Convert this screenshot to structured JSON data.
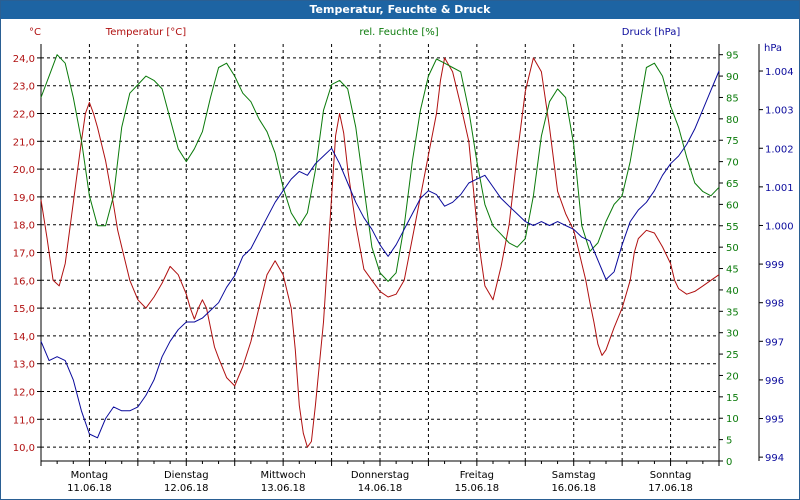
{
  "window": {
    "title": "Temperatur, Feuchte & Druck"
  },
  "colors": {
    "temperature": "#b01010",
    "humidity": "#0a7a0a",
    "pressure": "#0a0a9c",
    "grid": "#000000"
  },
  "chart_data": {
    "type": "line",
    "title": "Temperatur, Feuchte & Druck",
    "x_unit": "hours since 11.06.18 00:00",
    "x_range": [
      0,
      168
    ],
    "grid": true,
    "day_labels": [
      {
        "day": "Montag",
        "date": "11.06.18",
        "x": 0
      },
      {
        "day": "Dienstag",
        "date": "12.06.18",
        "x": 24
      },
      {
        "day": "Mittwoch",
        "date": "13.06.18",
        "x": 48
      },
      {
        "day": "Donnerstag",
        "date": "14.06.18",
        "x": 72
      },
      {
        "day": "Freitag",
        "date": "15.06.18",
        "x": 96
      },
      {
        "day": "Samstag",
        "date": "16.06.18",
        "x": 120
      },
      {
        "day": "Sonntag",
        "date": "17.06.18",
        "x": 144
      }
    ],
    "axes": {
      "temperature": {
        "label": "Temperatur [°C]",
        "unit": "°C",
        "range": [
          9.5,
          24.5
        ],
        "ticks": [
          "10,0",
          "11,0",
          "12,0",
          "13,0",
          "14,0",
          "15,0",
          "16,0",
          "17,0",
          "18,0",
          "19,0",
          "20,0",
          "21,0",
          "22,0",
          "23,0",
          "24,0"
        ]
      },
      "humidity": {
        "label": "rel. Feuchte [%]",
        "unit": "%",
        "range": [
          0,
          97.5
        ],
        "ticks": [
          "0",
          "5",
          "10",
          "15",
          "20",
          "25",
          "30",
          "35",
          "40",
          "45",
          "50",
          "55",
          "60",
          "65",
          "70",
          "75",
          "80",
          "85",
          "90",
          "95"
        ]
      },
      "pressure": {
        "label": "Druck [hPa]",
        "unit": "hPa",
        "range": [
          993.9,
          1004.7
        ],
        "ticks": [
          "994",
          "995",
          "996",
          "997",
          "998",
          "999",
          "1.000",
          "1.001",
          "1.002",
          "1.003",
          "1.004"
        ]
      }
    },
    "series": [
      {
        "name": "Temperatur",
        "axis": "temperature",
        "x": [
          0,
          1.5,
          3,
          4.5,
          6,
          8,
          10,
          11,
          12,
          13,
          14,
          16,
          18,
          19,
          20,
          22,
          24,
          26,
          28,
          30,
          32,
          34,
          36,
          37,
          38,
          39,
          40,
          41,
          42,
          43,
          44,
          46,
          48,
          50,
          52,
          54,
          56,
          58,
          60,
          62,
          63,
          64,
          65,
          66,
          67,
          68,
          70,
          72,
          73,
          74,
          75,
          76,
          78,
          80,
          82,
          84,
          86,
          88,
          90,
          92,
          94,
          96,
          98,
          99,
          100,
          102,
          104,
          106,
          107,
          108,
          109,
          110,
          112,
          114,
          116,
          118,
          120,
          122,
          124,
          126,
          128,
          130,
          132,
          133,
          134,
          135,
          136,
          137,
          138,
          139,
          140,
          142,
          144,
          146,
          147,
          148,
          150,
          152,
          154,
          156,
          157,
          158,
          160,
          162,
          164,
          166,
          168
        ],
        "values": [
          18.9,
          17.5,
          16.0,
          15.8,
          16.6,
          18.8,
          21.0,
          22.0,
          22.4,
          22.0,
          21.5,
          20.3,
          18.7,
          17.8,
          17.2,
          16.0,
          15.3,
          15.0,
          15.4,
          15.9,
          16.5,
          16.2,
          15.5,
          15.0,
          14.6,
          15.0,
          15.3,
          15.0,
          14.3,
          13.6,
          13.2,
          12.5,
          12.2,
          12.9,
          13.8,
          15.0,
          16.2,
          16.7,
          16.2,
          15.0,
          13.5,
          11.5,
          10.5,
          10.0,
          10.2,
          11.5,
          14.5,
          19.0,
          21.2,
          22.0,
          21.3,
          20.0,
          18.0,
          16.4,
          16.0,
          15.6,
          15.4,
          15.5,
          16.0,
          17.5,
          19.0,
          20.5,
          22.0,
          23.2,
          24.0,
          23.5,
          22.3,
          21.0,
          19.5,
          18.0,
          16.8,
          15.8,
          15.3,
          16.5,
          18.0,
          20.5,
          22.8,
          24.0,
          23.5,
          21.5,
          19.2,
          18.4,
          17.8,
          17.2,
          16.6,
          16.0,
          15.2,
          14.5,
          13.7,
          13.3,
          13.5,
          14.3,
          15.0,
          16.0,
          17.0,
          17.5,
          17.8,
          17.7,
          17.2,
          16.6,
          16.0,
          15.7,
          15.5,
          15.6,
          15.8,
          16.0,
          16.2
        ]
      },
      {
        "name": "rel. Feuchte",
        "axis": "humidity",
        "x": [
          0,
          2,
          4,
          6,
          8,
          10,
          12,
          14,
          16,
          18,
          20,
          22,
          24,
          26,
          28,
          30,
          32,
          34,
          36,
          38,
          40,
          42,
          44,
          46,
          48,
          50,
          52,
          54,
          56,
          58,
          60,
          62,
          64,
          66,
          68,
          70,
          72,
          74,
          76,
          78,
          80,
          82,
          84,
          86,
          88,
          90,
          92,
          94,
          96,
          98,
          100,
          102,
          104,
          106,
          108,
          110,
          112,
          114,
          116,
          118,
          120,
          122,
          124,
          126,
          128,
          130,
          132,
          134,
          136,
          138,
          140,
          142,
          144,
          146,
          148,
          150,
          152,
          154,
          156,
          158,
          160,
          162,
          164,
          166,
          168
        ],
        "values": [
          85,
          90,
          95,
          93,
          85,
          75,
          62,
          55,
          55,
          62,
          78,
          86,
          88,
          90,
          89,
          87,
          80,
          73,
          70,
          73,
          77,
          85,
          92,
          93,
          90,
          86,
          84,
          80,
          77,
          72,
          64,
          58,
          55,
          58,
          68,
          82,
          88,
          89,
          87,
          78,
          64,
          50,
          44,
          42,
          44,
          55,
          70,
          82,
          90,
          94,
          93,
          92,
          91,
          82,
          70,
          60,
          55,
          53,
          51,
          50,
          52,
          62,
          76,
          84,
          87,
          85,
          74,
          55,
          49,
          51,
          56,
          60,
          62,
          70,
          81,
          92,
          93,
          90,
          83,
          78,
          71,
          65,
          63,
          62,
          64
        ]
      },
      {
        "name": "Druck",
        "axis": "pressure",
        "x": [
          0,
          2,
          4,
          6,
          8,
          10,
          12,
          14,
          16,
          18,
          20,
          22,
          24,
          26,
          28,
          30,
          32,
          34,
          36,
          38,
          40,
          42,
          44,
          46,
          48,
          50,
          52,
          54,
          56,
          58,
          60,
          62,
          64,
          66,
          68,
          70,
          72,
          74,
          76,
          78,
          80,
          82,
          84,
          86,
          88,
          90,
          92,
          94,
          96,
          98,
          100,
          102,
          104,
          106,
          108,
          110,
          112,
          114,
          116,
          118,
          120,
          122,
          124,
          126,
          128,
          130,
          132,
          134,
          136,
          138,
          140,
          142,
          144,
          146,
          148,
          150,
          152,
          154,
          156,
          158,
          160,
          162,
          164,
          166,
          168
        ],
        "values": [
          997.0,
          996.5,
          996.6,
          996.5,
          996.0,
          995.2,
          994.6,
          994.5,
          995.0,
          995.3,
          995.2,
          995.2,
          995.3,
          995.6,
          996.0,
          996.6,
          997.0,
          997.3,
          997.5,
          997.5,
          997.6,
          997.8,
          998.0,
          998.4,
          998.7,
          999.2,
          999.4,
          999.8,
          1000.2,
          1000.6,
          1000.9,
          1001.2,
          1001.4,
          1001.3,
          1001.6,
          1001.8,
          1002.0,
          1001.6,
          1001.1,
          1000.6,
          1000.2,
          999.9,
          999.5,
          999.2,
          999.5,
          999.9,
          1000.3,
          1000.7,
          1000.9,
          1000.8,
          1000.5,
          1000.6,
          1000.8,
          1001.1,
          1001.2,
          1001.3,
          1001.0,
          1000.7,
          1000.5,
          1000.3,
          1000.1,
          1000.0,
          1000.1,
          1000.0,
          1000.1,
          1000.0,
          999.9,
          999.7,
          999.6,
          999.1,
          998.6,
          998.8,
          999.5,
          1000.1,
          1000.4,
          1000.6,
          1000.9,
          1001.3,
          1001.6,
          1001.8,
          1002.1,
          1002.5,
          1003.0,
          1003.5,
          1004.0
        ]
      }
    ]
  }
}
